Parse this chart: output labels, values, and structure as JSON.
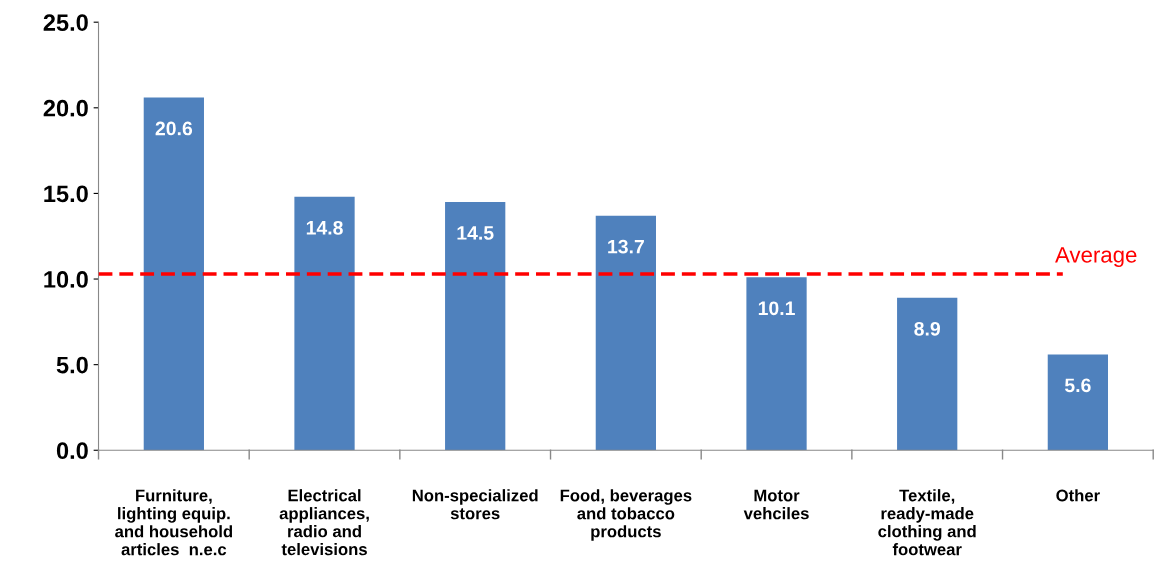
{
  "chart_data": {
    "type": "bar",
    "categories": [
      "Furniture,\nlighting equip.\nand household\narticles  n.e.c",
      "Electrical\nappliances,\nradio and\ntelevisions",
      "Non-specialized\nstores",
      "Food, beverages\nand tobacco\nproducts",
      "Motor\nvehciles",
      "Textile,\nready-made\nclothing and\nfootwear",
      "Other"
    ],
    "values": [
      20.6,
      14.8,
      14.5,
      13.7,
      10.1,
      8.9,
      5.6
    ],
    "color": "#4f81bd",
    "data_labels": true,
    "ylim": [
      0,
      25
    ],
    "yticks": [
      {
        "value": 0,
        "label": "0.0"
      },
      {
        "value": 5,
        "label": "5.0"
      },
      {
        "value": 10,
        "label": "10.0"
      },
      {
        "value": 15,
        "label": "15.0"
      },
      {
        "value": 20,
        "label": "20.0"
      },
      {
        "value": 25,
        "label": "25.0"
      }
    ],
    "ref_lines": [
      {
        "axis": "y",
        "value": 10.3,
        "label": "Average",
        "color": "#ff0000",
        "line_style": "dashed"
      }
    ],
    "grid": false,
    "legend": false
  }
}
